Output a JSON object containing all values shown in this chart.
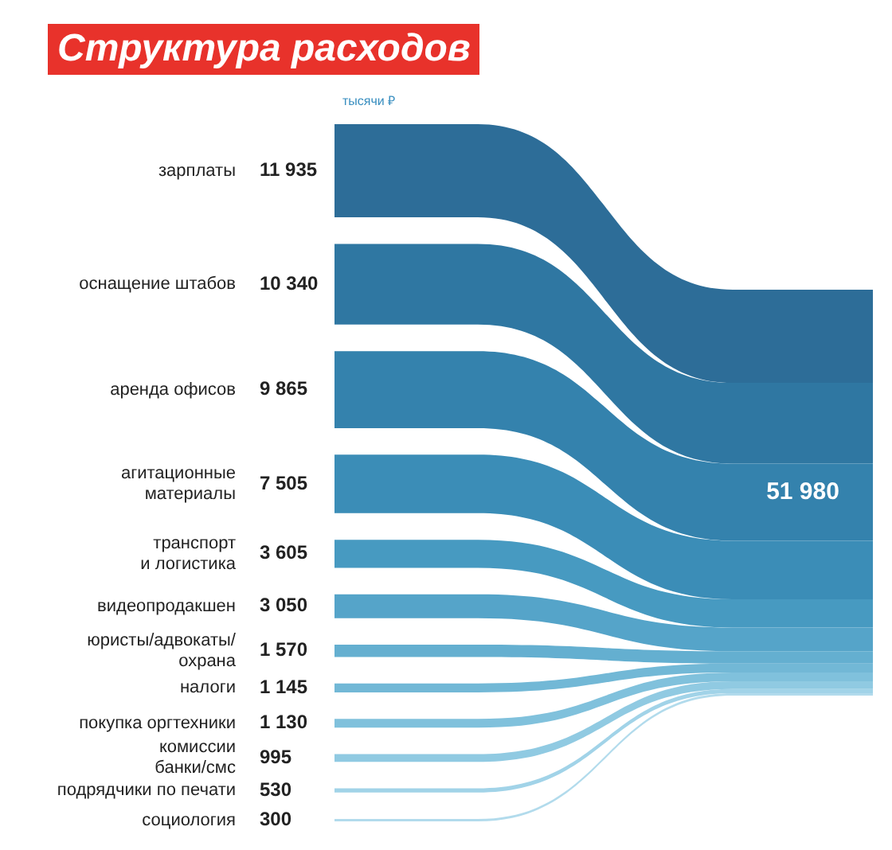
{
  "chart_data": {
    "type": "other",
    "title": "Структура расходов",
    "subtitle": "тысячи ₽",
    "categories": [
      "зарплаты",
      "оснащение штабов",
      "аренда офисов",
      "агитационные\nматериалы",
      "транспорт\nи логистика",
      "видеопродакшен",
      "юристы/адвокаты/\nохрана",
      "налоги",
      "покупка оргтехники",
      "комиссии\nбанки/смс",
      "подрядчики по печати",
      "социология"
    ],
    "values": [
      11935,
      10340,
      9865,
      7505,
      3605,
      3050,
      1570,
      1145,
      1130,
      995,
      530,
      300
    ],
    "value_labels": [
      "11 935",
      "10 340",
      "9 865",
      "7 505",
      "3 605",
      "3 050",
      "1 570",
      "1 145",
      "1 130",
      "995",
      "530",
      "300"
    ],
    "colors": [
      "#2d6d98",
      "#2f77a2",
      "#3482ad",
      "#3b8db7",
      "#479ac1",
      "#55a4c9",
      "#64afd0",
      "#72b8d6",
      "#80c1dc",
      "#90cae2",
      "#a1d3e8",
      "#b2dbec"
    ],
    "totals": [
      "51 980"
    ]
  }
}
